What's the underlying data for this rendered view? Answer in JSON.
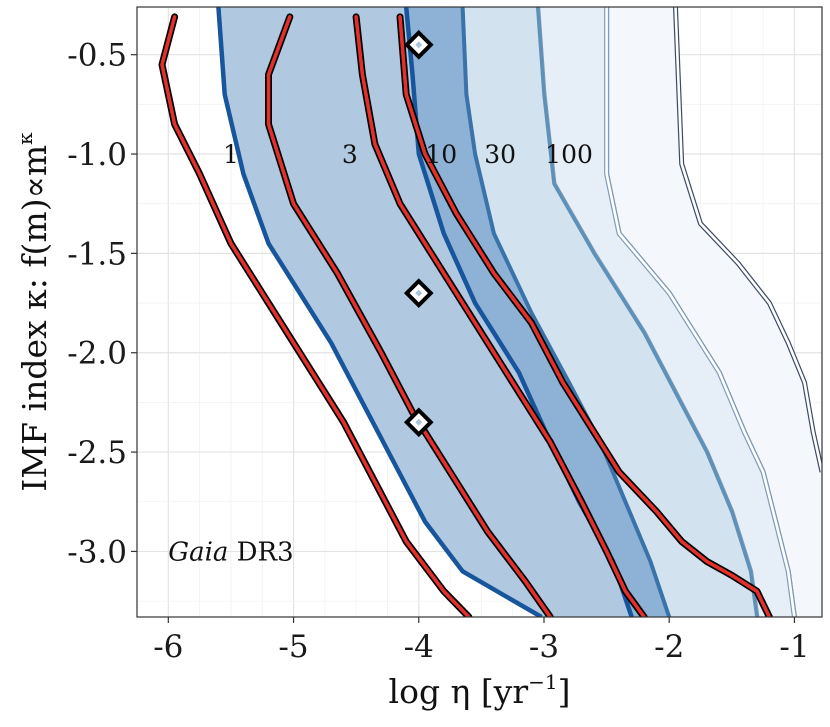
{
  "chart_data": {
    "type": "contour",
    "title": "",
    "xlabel": "log η [yr",
    "xlabel_sup": "−1",
    "xlabel_suffix": "]",
    "ylabel": "IMF index κ: f(m)∝m",
    "ylabel_sup": "κ",
    "xlim": [
      -6.25,
      -0.78
    ],
    "ylim": [
      -3.33,
      -0.26
    ],
    "x_ticks": [
      -6,
      -5,
      -4,
      -3,
      -2,
      -1
    ],
    "x_tick_labels": [
      "-6",
      "-5",
      "-4",
      "-3",
      "-2",
      "-1"
    ],
    "y_ticks": [
      -0.5,
      -1.0,
      -1.5,
      -2.0,
      -2.5,
      -3.0
    ],
    "y_tick_labels": [
      "-0.5",
      "-1.0",
      "-1.5",
      "-2.0",
      "-2.5",
      "-3.0"
    ],
    "annotation": {
      "italic": "Gaia",
      "normal": " DR3",
      "x": -6.0,
      "y": -3.0
    },
    "contour_levels": [
      "1",
      "3",
      "10",
      "30",
      "100"
    ],
    "contour_label_positions": [
      {
        "label": "1",
        "x": -5.5,
        "y": -1.0
      },
      {
        "label": "3",
        "x": -4.55,
        "y": -1.0
      },
      {
        "label": "10",
        "x": -3.82,
        "y": -1.0
      },
      {
        "label": "30",
        "x": -3.35,
        "y": -1.0
      },
      {
        "label": "100",
        "x": -2.8,
        "y": -1.0
      }
    ],
    "bands": [
      {
        "name": "band-100",
        "fill": "#f4f7fc",
        "stroke": "#3d4a66",
        "lw": 1.2,
        "double": true,
        "left": [
          [
            -2.5,
            -0.26
          ],
          [
            -2.5,
            -1.1
          ],
          [
            -2.4,
            -1.4
          ],
          [
            -2.2,
            -1.55
          ],
          [
            -2.0,
            -1.7
          ],
          [
            -1.8,
            -1.9
          ],
          [
            -1.6,
            -2.1
          ],
          [
            -1.4,
            -2.4
          ],
          [
            -1.25,
            -2.6
          ],
          [
            -1.15,
            -2.85
          ],
          [
            -1.05,
            -3.1
          ],
          [
            -1.0,
            -3.33
          ]
        ],
        "right": [
          [
            -1.95,
            -0.26
          ],
          [
            -1.9,
            -1.05
          ],
          [
            -1.75,
            -1.35
          ],
          [
            -1.45,
            -1.55
          ],
          [
            -1.2,
            -1.75
          ],
          [
            -1.05,
            -1.95
          ],
          [
            -0.92,
            -2.15
          ],
          [
            -0.85,
            -2.4
          ],
          [
            -0.78,
            -2.6
          ]
        ]
      },
      {
        "name": "band-30",
        "fill": "#e6eef8",
        "stroke": "#7e9cb8",
        "lw": 1.5,
        "double": true,
        "left": [
          [
            -3.05,
            -0.26
          ],
          [
            -3.0,
            -0.7
          ],
          [
            -2.92,
            -1.15
          ],
          [
            -2.6,
            -1.5
          ],
          [
            -2.2,
            -1.9
          ],
          [
            -1.95,
            -2.2
          ],
          [
            -1.7,
            -2.5
          ],
          [
            -1.5,
            -2.8
          ],
          [
            -1.35,
            -3.1
          ],
          [
            -1.3,
            -3.33
          ]
        ],
        "right": [
          [
            -2.5,
            -0.26
          ],
          [
            -2.5,
            -1.1
          ],
          [
            -2.4,
            -1.4
          ],
          [
            -2.2,
            -1.55
          ],
          [
            -2.0,
            -1.7
          ],
          [
            -1.8,
            -1.9
          ],
          [
            -1.6,
            -2.1
          ],
          [
            -1.4,
            -2.4
          ],
          [
            -1.25,
            -2.6
          ],
          [
            -1.15,
            -2.85
          ],
          [
            -1.05,
            -3.1
          ],
          [
            -1.0,
            -3.33
          ]
        ]
      },
      {
        "name": "band-10",
        "fill": "#d2e3ef",
        "stroke": "#5f91b8",
        "lw": 3.5,
        "double": false,
        "left": [
          [
            -3.65,
            -0.26
          ],
          [
            -3.62,
            -0.7
          ],
          [
            -3.55,
            -1.0
          ],
          [
            -3.4,
            -1.4
          ],
          [
            -3.1,
            -1.8
          ],
          [
            -2.8,
            -2.15
          ],
          [
            -2.55,
            -2.45
          ],
          [
            -2.35,
            -2.75
          ],
          [
            -2.15,
            -3.05
          ],
          [
            -2.0,
            -3.33
          ]
        ],
        "right": [
          [
            -3.05,
            -0.26
          ],
          [
            -3.0,
            -0.7
          ],
          [
            -2.92,
            -1.15
          ],
          [
            -2.6,
            -1.5
          ],
          [
            -2.2,
            -1.9
          ],
          [
            -1.95,
            -2.2
          ],
          [
            -1.7,
            -2.5
          ],
          [
            -1.5,
            -2.8
          ],
          [
            -1.35,
            -3.1
          ],
          [
            -1.3,
            -3.33
          ]
        ]
      },
      {
        "name": "band-3",
        "fill": "#8eb1d6",
        "stroke": "#3a73aa",
        "lw": 4.0,
        "double": false,
        "left": [
          [
            -4.1,
            -0.26
          ],
          [
            -4.05,
            -0.6
          ],
          [
            -4.0,
            -1.0
          ],
          [
            -3.8,
            -1.4
          ],
          [
            -3.55,
            -1.75
          ],
          [
            -3.2,
            -2.1
          ],
          [
            -2.95,
            -2.45
          ],
          [
            -2.72,
            -2.75
          ],
          [
            -2.45,
            -3.05
          ],
          [
            -2.3,
            -3.33
          ]
        ],
        "right": [
          [
            -3.65,
            -0.26
          ],
          [
            -3.62,
            -0.7
          ],
          [
            -3.55,
            -1.0
          ],
          [
            -3.4,
            -1.4
          ],
          [
            -3.1,
            -1.8
          ],
          [
            -2.8,
            -2.15
          ],
          [
            -2.55,
            -2.45
          ],
          [
            -2.35,
            -2.75
          ],
          [
            -2.15,
            -3.05
          ],
          [
            -2.0,
            -3.33
          ]
        ]
      },
      {
        "name": "band-1",
        "fill": "#b0c8e0",
        "stroke": "#17559c",
        "lw": 4.5,
        "double": false,
        "left": [
          [
            -5.6,
            -0.26
          ],
          [
            -5.55,
            -0.7
          ],
          [
            -5.4,
            -1.1
          ],
          [
            -5.2,
            -1.45
          ],
          [
            -4.95,
            -1.7
          ],
          [
            -4.7,
            -1.95
          ],
          [
            -4.45,
            -2.25
          ],
          [
            -4.2,
            -2.55
          ],
          [
            -3.95,
            -2.85
          ],
          [
            -3.65,
            -3.1
          ],
          [
            -3.02,
            -3.33
          ]
        ],
        "right": [
          [
            -4.1,
            -0.26
          ],
          [
            -4.05,
            -0.6
          ],
          [
            -4.0,
            -1.0
          ],
          [
            -3.8,
            -1.4
          ],
          [
            -3.55,
            -1.75
          ],
          [
            -3.2,
            -2.1
          ],
          [
            -2.95,
            -2.45
          ],
          [
            -2.72,
            -2.75
          ],
          [
            -2.45,
            -3.05
          ],
          [
            -2.3,
            -3.33
          ]
        ]
      }
    ],
    "red_lines": [
      {
        "name": "red-line-1",
        "points": [
          [
            -5.95,
            -0.31
          ],
          [
            -6.05,
            -0.55
          ],
          [
            -5.95,
            -0.85
          ],
          [
            -5.75,
            -1.1
          ],
          [
            -5.5,
            -1.45
          ],
          [
            -5.2,
            -1.75
          ],
          [
            -4.9,
            -2.05
          ],
          [
            -4.6,
            -2.35
          ],
          [
            -4.35,
            -2.65
          ],
          [
            -4.1,
            -2.95
          ],
          [
            -3.8,
            -3.2
          ],
          [
            -3.6,
            -3.33
          ]
        ]
      },
      {
        "name": "red-line-2",
        "points": [
          [
            -5.03,
            -0.31
          ],
          [
            -5.2,
            -0.6
          ],
          [
            -5.2,
            -0.85
          ],
          [
            -5.0,
            -1.25
          ],
          [
            -4.65,
            -1.6
          ],
          [
            -4.3,
            -2.0
          ],
          [
            -4.05,
            -2.3
          ],
          [
            -3.75,
            -2.6
          ],
          [
            -3.45,
            -2.9
          ],
          [
            -3.15,
            -3.15
          ],
          [
            -2.95,
            -3.33
          ]
        ]
      },
      {
        "name": "red-line-3",
        "points": [
          [
            -4.5,
            -0.31
          ],
          [
            -4.45,
            -0.6
          ],
          [
            -4.35,
            -0.95
          ],
          [
            -4.15,
            -1.25
          ],
          [
            -3.85,
            -1.55
          ],
          [
            -3.55,
            -1.85
          ],
          [
            -3.25,
            -2.15
          ],
          [
            -2.95,
            -2.45
          ],
          [
            -2.7,
            -2.75
          ],
          [
            -2.5,
            -3.0
          ],
          [
            -2.35,
            -3.2
          ],
          [
            -2.2,
            -3.33
          ]
        ]
      },
      {
        "name": "red-line-4",
        "points": [
          [
            -4.15,
            -0.31
          ],
          [
            -4.1,
            -0.7
          ],
          [
            -3.95,
            -1.0
          ],
          [
            -3.7,
            -1.3
          ],
          [
            -3.4,
            -1.6
          ],
          [
            -3.1,
            -1.85
          ],
          [
            -2.85,
            -2.15
          ],
          [
            -2.6,
            -2.4
          ],
          [
            -2.4,
            -2.6
          ],
          [
            -2.1,
            -2.8
          ],
          [
            -1.9,
            -2.95
          ],
          [
            -1.7,
            -3.05
          ],
          [
            -1.5,
            -3.12
          ],
          [
            -1.3,
            -3.2
          ],
          [
            -1.2,
            -3.33
          ]
        ]
      }
    ],
    "markers": [
      {
        "name": "diamond-marker-1",
        "x": -4.0,
        "y": -0.45
      },
      {
        "name": "diamond-marker-2",
        "x": -4.0,
        "y": -1.7
      },
      {
        "name": "diamond-marker-3",
        "x": -4.0,
        "y": -2.35
      }
    ],
    "grid": true
  }
}
